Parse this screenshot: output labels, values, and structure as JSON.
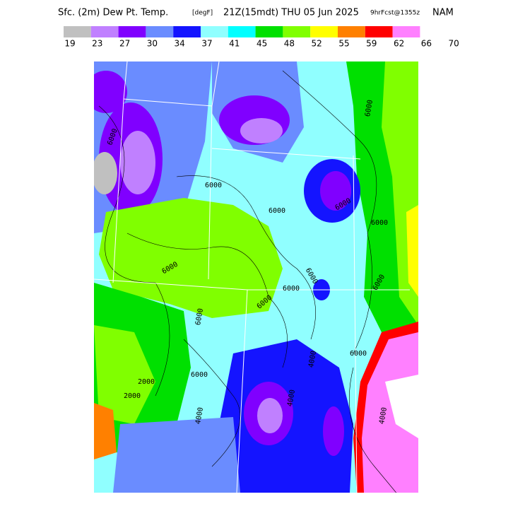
{
  "header": {
    "title": "Sfc. (2m) Dew Pt. Temp.",
    "units": "[degF]",
    "valid": "21Z(15mdt) THU 05 Jun 2025",
    "forecast": "9hrFcst@1355z",
    "model": "NAM"
  },
  "colorbar": {
    "colors": [
      "#c0c0c0",
      "#c080ff",
      "#8000ff",
      "#6a8cff",
      "#1414ff",
      "#90ffff",
      "#00ffff",
      "#00e000",
      "#80ff00",
      "#ffff00",
      "#ff8000",
      "#ff0000",
      "#ff80ff"
    ],
    "labels": [
      "19",
      "23",
      "27",
      "30",
      "34",
      "37",
      "41",
      "45",
      "48",
      "52",
      "55",
      "59",
      "62",
      "66",
      "70"
    ]
  },
  "map": {
    "contour_labels": [
      "6000",
      "6000",
      "6000",
      "6000",
      "6000",
      "6000",
      "6000",
      "6000",
      "6000",
      "6000",
      "6000",
      "6000",
      "6000",
      "6000",
      "4000",
      "4000",
      "4000",
      "2000",
      "2000",
      "4000"
    ]
  }
}
